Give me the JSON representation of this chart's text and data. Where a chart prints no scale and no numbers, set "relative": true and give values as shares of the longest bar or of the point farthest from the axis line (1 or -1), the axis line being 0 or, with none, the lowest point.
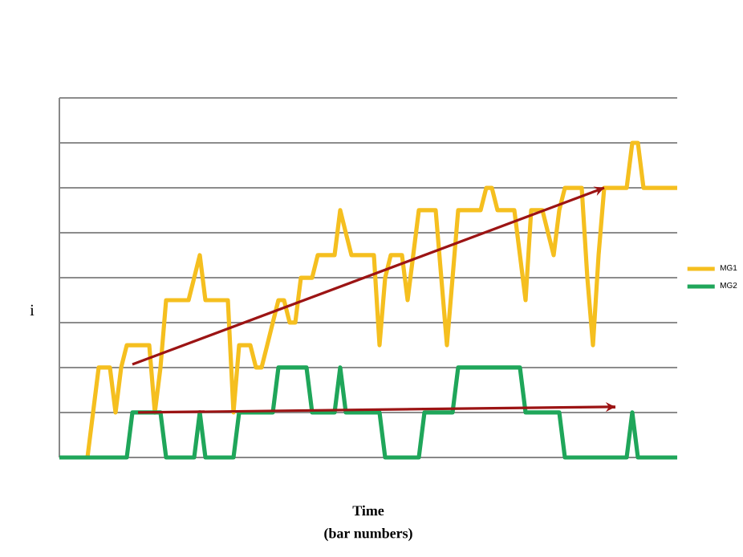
{
  "chart_data": {
    "type": "line",
    "relative": true,
    "xlabel": "Time",
    "ylabel": "i",
    "annotations": [
      "(bar numbers)"
    ],
    "legend": "right",
    "grid": "y",
    "categories": [
      null,
      null,
      null,
      null,
      null,
      null,
      null,
      null,
      null,
      null,
      null,
      null,
      null,
      null,
      null,
      null,
      null,
      null,
      null,
      null,
      null,
      null,
      null,
      null,
      null,
      null,
      null,
      null,
      null,
      null,
      null,
      null,
      null,
      null,
      null,
      null,
      null,
      null,
      null,
      null,
      null,
      null,
      null,
      null,
      null,
      null,
      null,
      null,
      null,
      null,
      null,
      null,
      null,
      null,
      null,
      null,
      null,
      null,
      null,
      null,
      null,
      null,
      null,
      null,
      null,
      null,
      null,
      null,
      null,
      null,
      null,
      null,
      null,
      null,
      null,
      null,
      null,
      null,
      null,
      null,
      null,
      null,
      null,
      null,
      null,
      null,
      null,
      null,
      null,
      null,
      null,
      null,
      null,
      null,
      null,
      null,
      null,
      null,
      null,
      null,
      null,
      null,
      null,
      null,
      null,
      null,
      null,
      null,
      null,
      null,
      null
    ],
    "series": [
      {
        "name": "MG1",
        "color": "#f5bf1f",
        "values": [
          null,
          null,
          null,
          null,
          null,
          0,
          0.143,
          0.286,
          0.286,
          0.286,
          0.143,
          0.286,
          0.357,
          0.357,
          0.357,
          0.357,
          0.357,
          0.143,
          0.286,
          0.5,
          0.5,
          0.5,
          0.5,
          0.5,
          0.571,
          0.643,
          0.5,
          0.5,
          0.5,
          0.5,
          0.5,
          0.143,
          0.357,
          0.357,
          0.357,
          0.286,
          0.286,
          0.357,
          0.429,
          0.5,
          0.5,
          0.429,
          0.429,
          0.571,
          0.571,
          0.571,
          0.643,
          0.643,
          0.643,
          0.643,
          0.786,
          0.714,
          0.643,
          0.643,
          0.643,
          0.643,
          0.643,
          0.357,
          0.571,
          0.643,
          0.643,
          0.643,
          0.5,
          0.643,
          0.786,
          0.786,
          0.786,
          0.786,
          0.571,
          0.357,
          0.571,
          0.786,
          0.786,
          0.786,
          0.786,
          0.786,
          0.857,
          0.857,
          0.786,
          0.786,
          0.786,
          0.786,
          0.643,
          0.5,
          0.786,
          0.786,
          0.786,
          0.714,
          0.643,
          0.786,
          0.857,
          0.857,
          0.857,
          0.857,
          0.571,
          0.357,
          0.643,
          0.857,
          0.857,
          0.857,
          0.857,
          0.857,
          1,
          1,
          0.857,
          0.857,
          0.857,
          0.857,
          0.857,
          0.857,
          0.857
        ]
      },
      {
        "name": "MG2",
        "color": "#1fa65a",
        "values": [
          0,
          0,
          0,
          0,
          0,
          0,
          0,
          0,
          0,
          0,
          0,
          0,
          0,
          0.143,
          0.143,
          0.143,
          0.143,
          0.143,
          0.143,
          0,
          0,
          0,
          0,
          0,
          0,
          0.143,
          0,
          0,
          0,
          0,
          0,
          0,
          0.143,
          0.143,
          0.143,
          0.143,
          0.143,
          0.143,
          0.143,
          0.286,
          0.286,
          0.286,
          0.286,
          0.286,
          0.286,
          0.143,
          0.143,
          0.143,
          0.143,
          0.143,
          0.286,
          0.143,
          0.143,
          0.143,
          0.143,
          0.143,
          0.143,
          0.143,
          0,
          0,
          0,
          0,
          0,
          0,
          0,
          0.143,
          0.143,
          0.143,
          0.143,
          0.143,
          0.143,
          0.286,
          0.286,
          0.286,
          0.286,
          0.286,
          0.286,
          0.286,
          0.286,
          0.286,
          0.286,
          0.286,
          0.286,
          0.143,
          0.143,
          0.143,
          0.143,
          0.143,
          0.143,
          0.143,
          0,
          0,
          0,
          0,
          0,
          0,
          0,
          0,
          0,
          0,
          0,
          0,
          0.143,
          0,
          0,
          0,
          0,
          0,
          0,
          0,
          0
        ]
      },
      {
        "type": "line",
        "color": "#9c1414",
        "values": [
          null,
          null,
          null,
          null,
          null,
          null,
          null,
          null,
          null,
          null,
          null,
          null,
          null,
          0.296,
          null,
          null,
          null,
          null,
          null,
          null,
          null,
          null,
          null,
          null,
          null,
          null,
          null,
          null,
          null,
          null,
          null,
          null,
          null,
          null,
          null,
          null,
          null,
          null,
          null,
          null,
          null,
          null,
          null,
          null,
          null,
          null,
          null,
          null,
          null,
          null,
          null,
          null,
          null,
          null,
          null,
          null,
          null,
          null,
          null,
          null,
          null,
          null,
          null,
          null,
          null,
          null,
          null,
          null,
          null,
          null,
          null,
          null,
          null,
          null,
          null,
          null,
          null,
          null,
          null,
          null,
          null,
          null,
          null,
          null,
          null,
          null,
          null,
          null,
          null,
          null,
          null,
          null,
          null,
          null,
          null,
          null,
          null,
          0.857,
          null,
          null,
          null,
          null,
          null,
          null,
          null,
          null,
          null,
          null,
          null,
          null,
          null
        ]
      },
      {
        "type": "line",
        "color": "#9c1414",
        "values": [
          null,
          null,
          null,
          null,
          null,
          null,
          null,
          null,
          null,
          null,
          null,
          null,
          null,
          null,
          0.143,
          null,
          null,
          null,
          null,
          null,
          null,
          null,
          null,
          null,
          null,
          null,
          null,
          null,
          null,
          null,
          null,
          null,
          null,
          null,
          null,
          null,
          null,
          null,
          null,
          null,
          null,
          null,
          null,
          null,
          null,
          null,
          null,
          null,
          null,
          null,
          null,
          null,
          null,
          null,
          null,
          null,
          null,
          null,
          null,
          null,
          null,
          null,
          null,
          null,
          null,
          null,
          null,
          null,
          null,
          null,
          null,
          null,
          null,
          null,
          null,
          null,
          null,
          null,
          null,
          null,
          null,
          null,
          null,
          null,
          null,
          null,
          null,
          null,
          null,
          null,
          null,
          null,
          null,
          null,
          null,
          null,
          null,
          null,
          null,
          0.161,
          null,
          null,
          null,
          null,
          null,
          null,
          null,
          null,
          null,
          null,
          null
        ]
      }
    ]
  }
}
